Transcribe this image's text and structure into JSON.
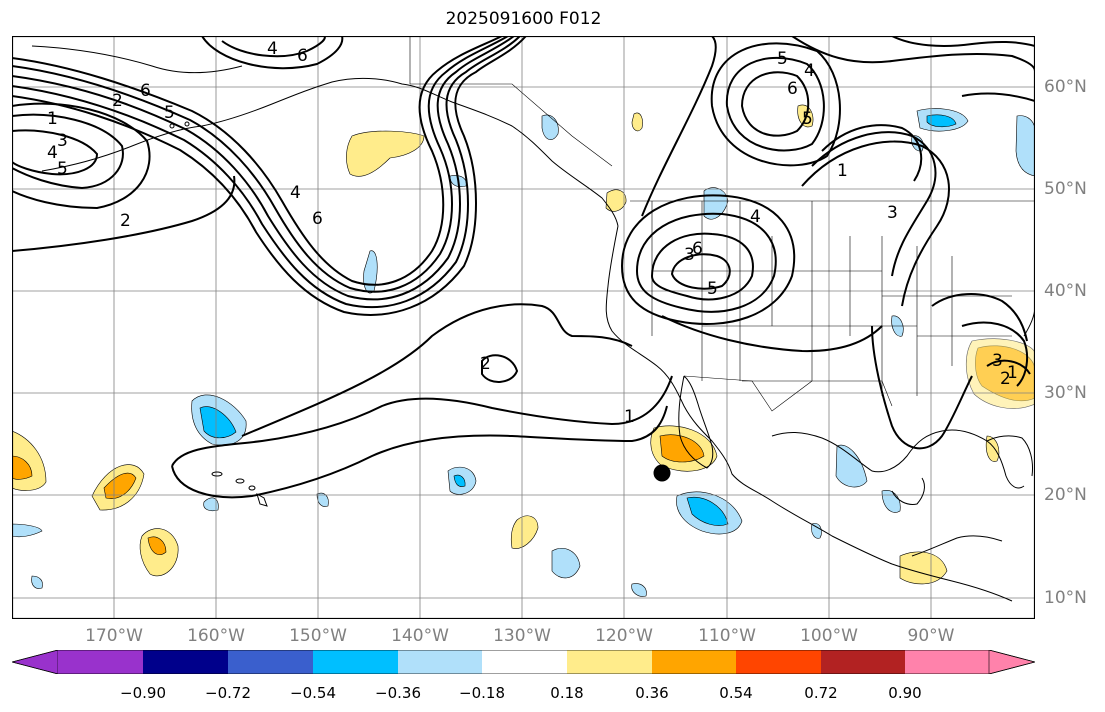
{
  "title": "2025091600 F012",
  "lat_labels": [
    "60°N",
    "50°N",
    "40°N",
    "30°N",
    "20°N",
    "10°N"
  ],
  "lon_labels": [
    "170°W",
    "160°W",
    "150°W",
    "140°W",
    "130°W",
    "120°W",
    "110°W",
    "100°W",
    "90°W"
  ],
  "colorbar": {
    "labels": [
      "−0.90",
      "−0.72",
      "−0.54",
      "−0.36",
      "−0.18",
      "0.18",
      "0.36",
      "0.54",
      "0.72",
      "0.90"
    ],
    "colors": [
      "#9932cc",
      "#00008b",
      "#3a5fcd",
      "#00bfff",
      "#b0e0fa",
      "#ffffff",
      "#ffec8b",
      "#ffa500",
      "#ff4500",
      "#b22222",
      "#ff82ab"
    ]
  },
  "contour_labels": [
    "1",
    "2",
    "3",
    "4",
    "5",
    "6",
    "6",
    "4",
    "5",
    "4",
    "6",
    "5",
    "6",
    "4",
    "2",
    "5",
    "3",
    "4",
    "5",
    "6",
    "3",
    "1",
    "2",
    "1",
    "3",
    "2",
    "1"
  ],
  "marker": "storm-center"
}
